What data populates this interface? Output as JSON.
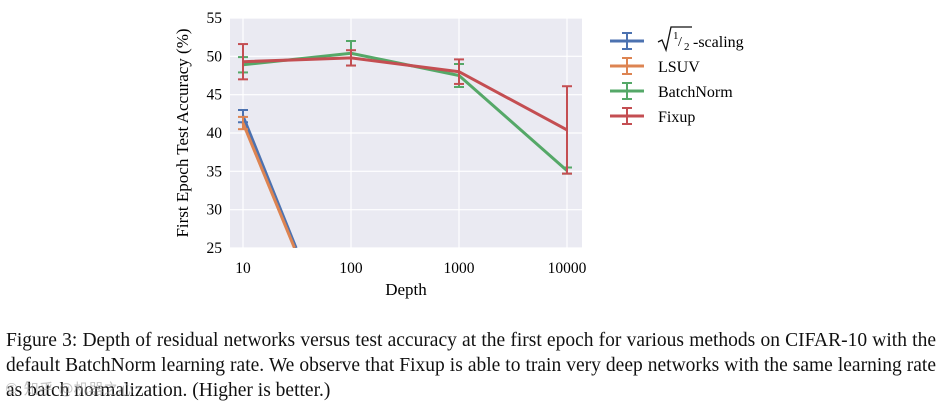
{
  "chart_data": {
    "type": "line",
    "xscale": "log",
    "x": [
      10,
      100,
      1000,
      10000
    ],
    "xticks": [
      "10",
      "100",
      "1000",
      "10000"
    ],
    "yticks": [
      "25",
      "30",
      "35",
      "40",
      "45",
      "50",
      "55"
    ],
    "ylim": [
      25,
      55
    ],
    "xlabel": "Depth",
    "ylabel": "First Epoch Test Accuracy (%)",
    "grid": true,
    "legend_position": "right",
    "series": [
      {
        "name": "√1/2-scaling",
        "name_root": "1",
        "name_sub": "2",
        "name_suffix": "-scaling",
        "color": "#4c72b0",
        "points": [
          [
            10,
            42.2
          ],
          [
            31,
            25
          ]
        ],
        "err": [
          0.8,
          null
        ]
      },
      {
        "name": "LSUV",
        "color": "#dd8452",
        "points": [
          [
            10,
            41.3
          ],
          [
            30,
            25
          ]
        ],
        "err": [
          0.8,
          null
        ]
      },
      {
        "name": "BatchNorm",
        "color": "#55a868",
        "points": [
          [
            10,
            48.9
          ],
          [
            100,
            50.4
          ],
          [
            1000,
            47.5
          ],
          [
            10000,
            35.1
          ]
        ],
        "err": [
          1.0,
          1.6,
          1.5,
          0.4
        ]
      },
      {
        "name": "Fixup",
        "color": "#c44e52",
        "points": [
          [
            10,
            49.3
          ],
          [
            100,
            49.8
          ],
          [
            1000,
            48.0
          ],
          [
            10000,
            40.4
          ]
        ],
        "err": [
          2.3,
          1.0,
          1.6,
          5.7
        ]
      }
    ]
  },
  "caption": "Figure 3: Depth of residual networks versus test accuracy at the first epoch for various methods on CIFAR-10 with the default BatchNorm learning rate. We observe that Fixup is able to train very deep networks with the same learning rate as batch normalization. (Higher is better.)",
  "watermark": "© 知乎 @机器之心"
}
